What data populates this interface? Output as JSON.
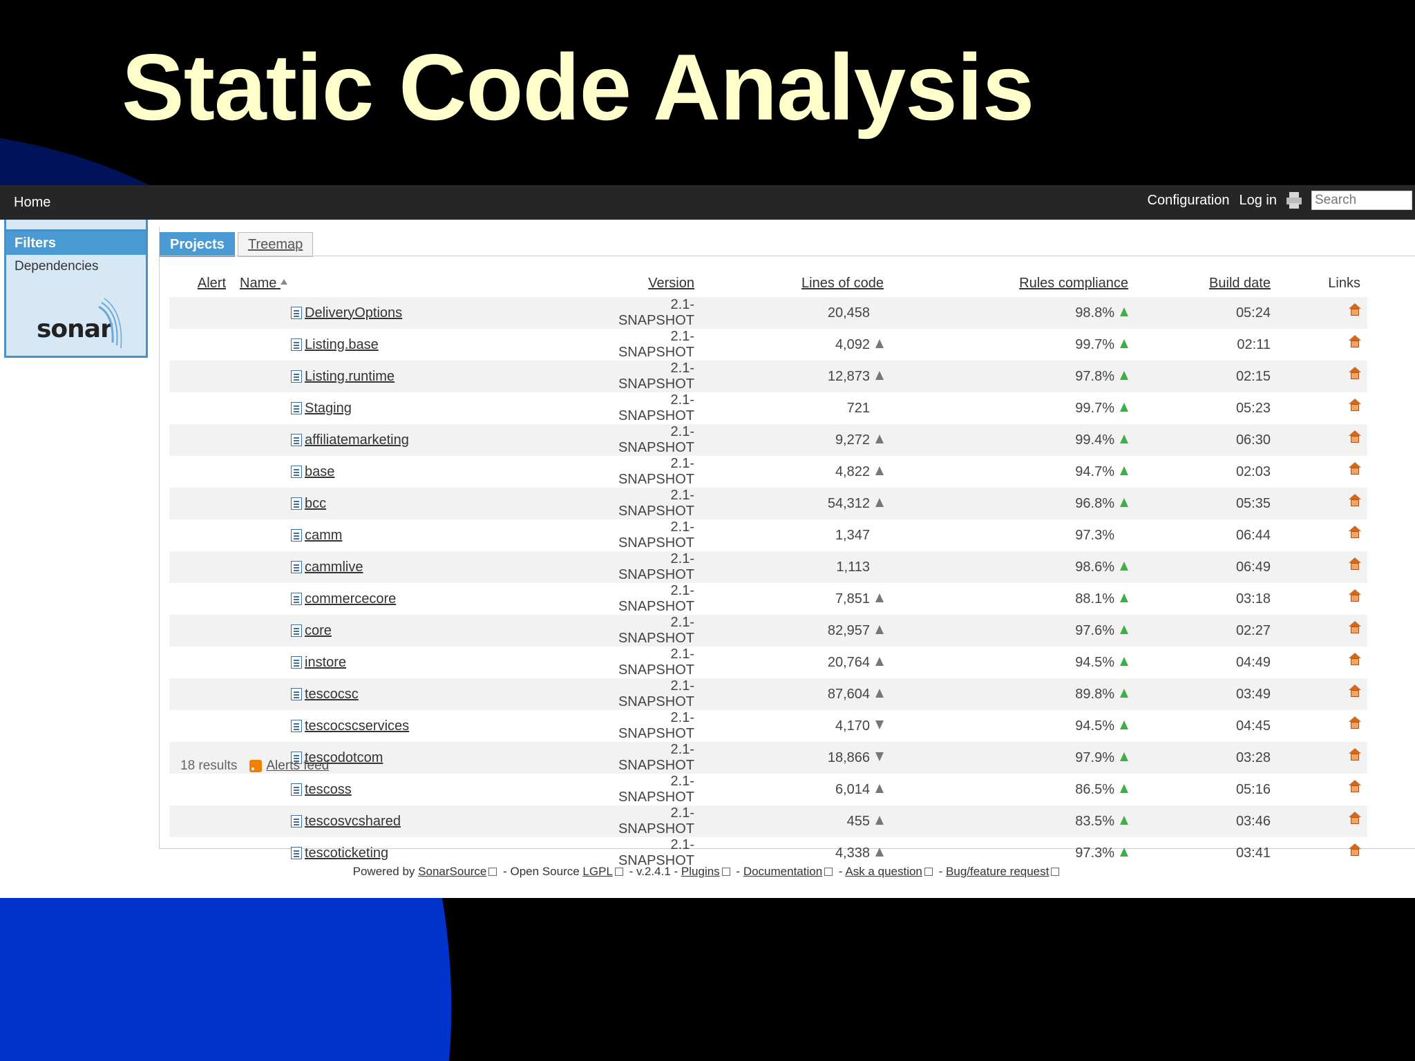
{
  "slide_title": "Static Code Analysis",
  "topbar": {
    "home": "Home",
    "configuration": "Configuration",
    "login": "Log in",
    "search_placeholder": "Search"
  },
  "sidebar": {
    "filters": "Filters",
    "dependencies": "Dependencies",
    "logo_text": "sonar"
  },
  "tabs": [
    "Projects",
    "Treemap"
  ],
  "columns": {
    "alert": "Alert",
    "name": "Name",
    "version": "Version",
    "loc": "Lines of code",
    "rules": "Rules compliance",
    "build": "Build date",
    "links": "Links"
  },
  "projects": [
    {
      "name": "DeliveryOptions",
      "version": "2.1-SNAPSHOT",
      "loc": "20,458",
      "loc_trend": "none",
      "rules": "98.8%",
      "rules_trend": "up",
      "build": "05:24"
    },
    {
      "name": "Listing.base",
      "version": "2.1-SNAPSHOT",
      "loc": "4,092",
      "loc_trend": "up",
      "rules": "99.7%",
      "rules_trend": "up",
      "build": "02:11"
    },
    {
      "name": "Listing.runtime",
      "version": "2.1-SNAPSHOT",
      "loc": "12,873",
      "loc_trend": "up",
      "rules": "97.8%",
      "rules_trend": "up",
      "build": "02:15"
    },
    {
      "name": "Staging",
      "version": "2.1-SNAPSHOT",
      "loc": "721",
      "loc_trend": "none",
      "rules": "99.7%",
      "rules_trend": "up",
      "build": "05:23"
    },
    {
      "name": "affiliatemarketing",
      "version": "2.1-SNAPSHOT",
      "loc": "9,272",
      "loc_trend": "up",
      "rules": "99.4%",
      "rules_trend": "up",
      "build": "06:30"
    },
    {
      "name": "base",
      "version": "2.1-SNAPSHOT",
      "loc": "4,822",
      "loc_trend": "up",
      "rules": "94.7%",
      "rules_trend": "up",
      "build": "02:03"
    },
    {
      "name": "bcc",
      "version": "2.1-SNAPSHOT",
      "loc": "54,312",
      "loc_trend": "up",
      "rules": "96.8%",
      "rules_trend": "up",
      "build": "05:35"
    },
    {
      "name": "camm",
      "version": "2.1-SNAPSHOT",
      "loc": "1,347",
      "loc_trend": "none",
      "rules": "97.3%",
      "rules_trend": "none",
      "build": "06:44"
    },
    {
      "name": "cammlive",
      "version": "2.1-SNAPSHOT",
      "loc": "1,113",
      "loc_trend": "none",
      "rules": "98.6%",
      "rules_trend": "up",
      "build": "06:49"
    },
    {
      "name": "commercecore",
      "version": "2.1-SNAPSHOT",
      "loc": "7,851",
      "loc_trend": "up",
      "rules": "88.1%",
      "rules_trend": "up",
      "build": "03:18"
    },
    {
      "name": "core",
      "version": "2.1-SNAPSHOT",
      "loc": "82,957",
      "loc_trend": "up",
      "rules": "97.6%",
      "rules_trend": "up",
      "build": "02:27"
    },
    {
      "name": "instore",
      "version": "2.1-SNAPSHOT",
      "loc": "20,764",
      "loc_trend": "up",
      "rules": "94.5%",
      "rules_trend": "up",
      "build": "04:49"
    },
    {
      "name": "tescocsc",
      "version": "2.1-SNAPSHOT",
      "loc": "87,604",
      "loc_trend": "up",
      "rules": "89.8%",
      "rules_trend": "up",
      "build": "03:49"
    },
    {
      "name": "tescocscservices",
      "version": "2.1-SNAPSHOT",
      "loc": "4,170",
      "loc_trend": "down",
      "rules": "94.5%",
      "rules_trend": "up",
      "build": "04:45"
    },
    {
      "name": "tescodotcom",
      "version": "2.1-SNAPSHOT",
      "loc": "18,866",
      "loc_trend": "down",
      "rules": "97.9%",
      "rules_trend": "up",
      "build": "03:28"
    },
    {
      "name": "tescoss",
      "version": "2.1-SNAPSHOT",
      "loc": "6,014",
      "loc_trend": "up",
      "rules": "86.5%",
      "rules_trend": "up",
      "build": "05:16"
    },
    {
      "name": "tescosvcshared",
      "version": "2.1-SNAPSHOT",
      "loc": "455",
      "loc_trend": "up",
      "rules": "83.5%",
      "rules_trend": "up",
      "build": "03:46"
    },
    {
      "name": "tescoticketing",
      "version": "2.1-SNAPSHOT",
      "loc": "4,338",
      "loc_trend": "up",
      "rules": "97.3%",
      "rules_trend": "up",
      "build": "03:41"
    }
  ],
  "results_count": "18 results",
  "alerts_feed": "Alerts feed",
  "footer": {
    "powered_by": "Powered by",
    "sonarsource": "SonarSource",
    "open_source": "- Open Source",
    "lgpl": "LGPL",
    "version": "- v.2.4.1 -",
    "plugins": "Plugins",
    "sep1": "-",
    "documentation": "Documentation",
    "sep2": "-",
    "ask": "Ask a question",
    "sep3": "-",
    "bug": "Bug/feature request"
  },
  "colors": {
    "title": "#ffffcc",
    "slide_blue": "#0033cc",
    "tab_active": "#4a9ad4",
    "trend_up_rules": "#3cb043"
  }
}
